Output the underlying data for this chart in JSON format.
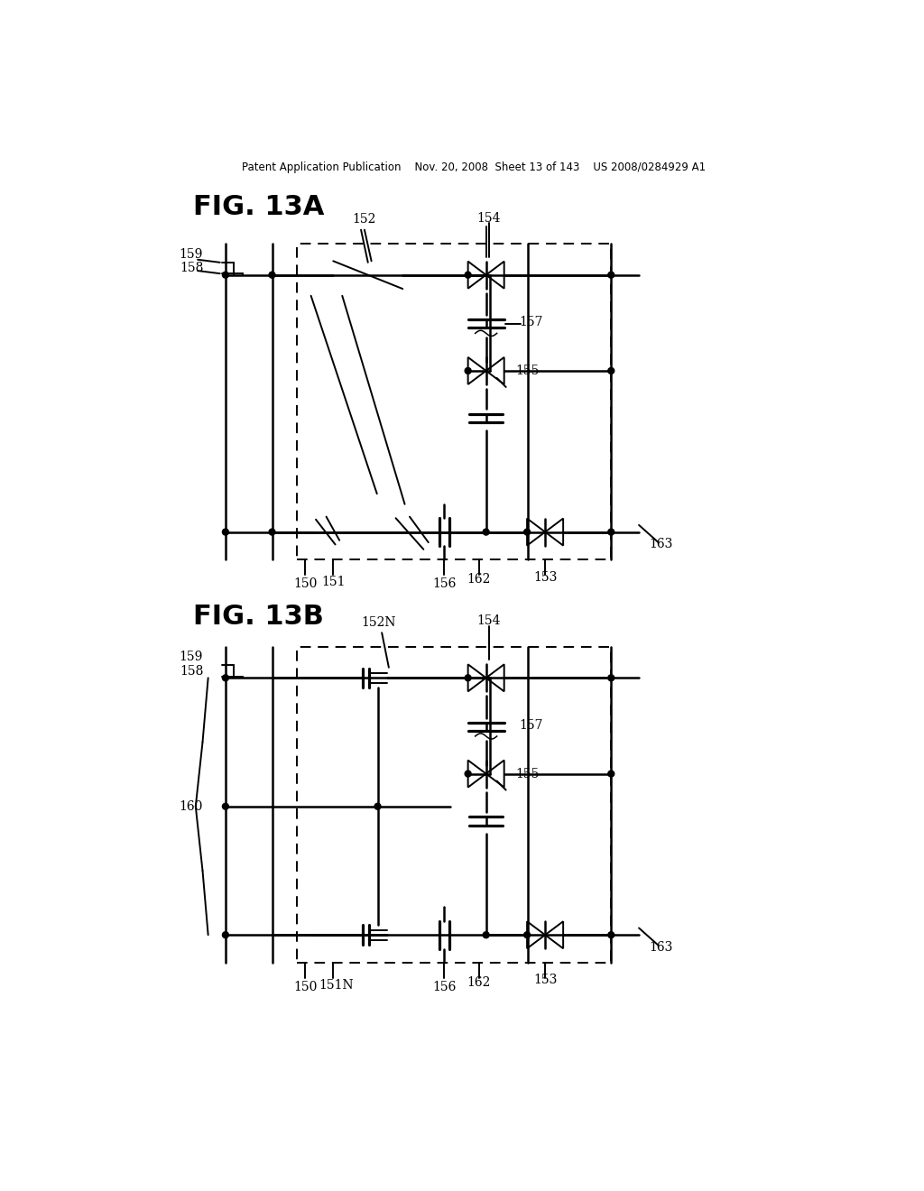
{
  "bg_color": "#ffffff",
  "header_text": "Patent Application Publication    Nov. 20, 2008  Sheet 13 of 143    US 2008/0284929 A1",
  "fig13a_label": "FIG. 13A",
  "fig13b_label": "FIG. 13B"
}
